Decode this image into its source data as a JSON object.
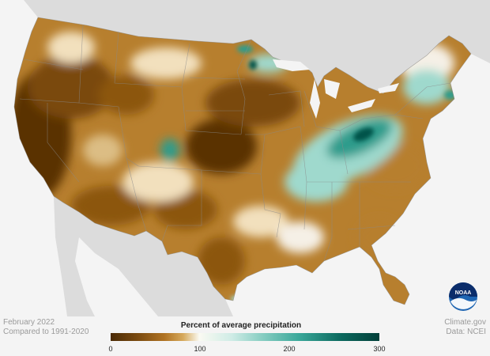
{
  "legend": {
    "title": "Percent of average precipitation",
    "ticks": [
      "0",
      "100",
      "200",
      "300"
    ],
    "colors": [
      "#4a2a05",
      "#7a4a0f",
      "#b07322",
      "#d6a95c",
      "#f2e0bd",
      "#fafaf2",
      "#cfece6",
      "#8fd1c6",
      "#3aa89a",
      "#0c6b60",
      "#013f39"
    ]
  },
  "footer": {
    "left_line1": "February 2022",
    "left_line2": "Compared to 1991-2020",
    "right_line1": "Climate.gov",
    "right_line2": "Data: NCEI"
  },
  "logo": {
    "text": "NOAA"
  },
  "map_colors": {
    "background": "#f4f4f4",
    "neighbor_land": "#dcdcdc",
    "very_dry": "#5a3306",
    "dry": "#8c560f",
    "moderately_dry": "#b77f2e",
    "slightly_dry": "#dcbd84",
    "near_normal": "#f5f0e6",
    "wet": "#9fd9cd",
    "very_wet": "#2f9c8c",
    "extremely_wet": "#05524a",
    "state_border": "#8a8a8a"
  }
}
